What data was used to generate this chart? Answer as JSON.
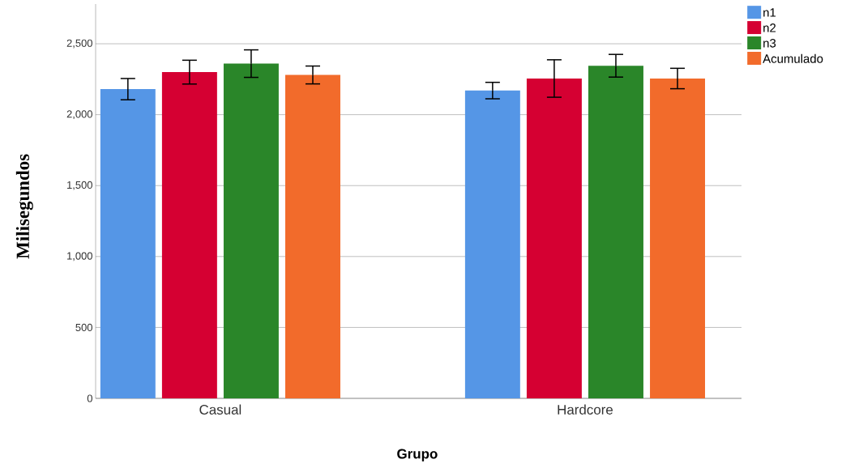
{
  "chart_data": {
    "type": "bar",
    "xlabel": "Grupo",
    "ylabel": "Milisegundos",
    "categories": [
      "Casual",
      "Hardcore"
    ],
    "series": [
      {
        "name": "n1",
        "color": "#5596e6",
        "values": [
          2180,
          2170
        ],
        "errors": [
          75,
          58
        ]
      },
      {
        "name": "n2",
        "color": "#d50032",
        "values": [
          2300,
          2255
        ],
        "errors": [
          84,
          132
        ]
      },
      {
        "name": "n3",
        "color": "#2a8629",
        "values": [
          2360,
          2345
        ],
        "errors": [
          97,
          80
        ]
      },
      {
        "name": "Acumulado",
        "color": "#f26b2b",
        "values": [
          2280,
          2255
        ],
        "errors": [
          63,
          72
        ]
      }
    ],
    "ylim": [
      0,
      2780
    ],
    "yticks": [
      0,
      500,
      {
        "value": 1000,
        "label": "1,000"
      },
      {
        "value": 1500,
        "label": "1,500"
      },
      {
        "value": 2000,
        "label": "2,000"
      },
      {
        "value": 2500,
        "label": "2,500"
      }
    ],
    "grid": "y",
    "legend": "top right"
  }
}
